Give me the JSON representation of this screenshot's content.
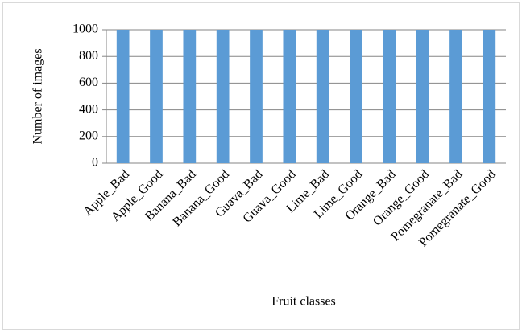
{
  "chart_data": {
    "type": "bar",
    "categories": [
      "Apple_Bad",
      "Apple_Good",
      "Banana_Bad",
      "Banana_Good",
      "Guava_Bad",
      "Guava_Good",
      "Lime_Bad",
      "Lime_Good",
      "Orange_Bad",
      "Orange_Good",
      "Pomegranate_Bad",
      "Pomegranate_Good"
    ],
    "values": [
      1000,
      1000,
      1000,
      1000,
      1000,
      1000,
      1000,
      1000,
      1000,
      1000,
      1000,
      1000
    ],
    "color": "#5b9bd5",
    "x_label": "Fruit classes",
    "y_label": "Number of images",
    "ylim": [
      0,
      1000
    ],
    "yticks": [
      0,
      200,
      400,
      600,
      800,
      1000
    ],
    "grid": true
  }
}
